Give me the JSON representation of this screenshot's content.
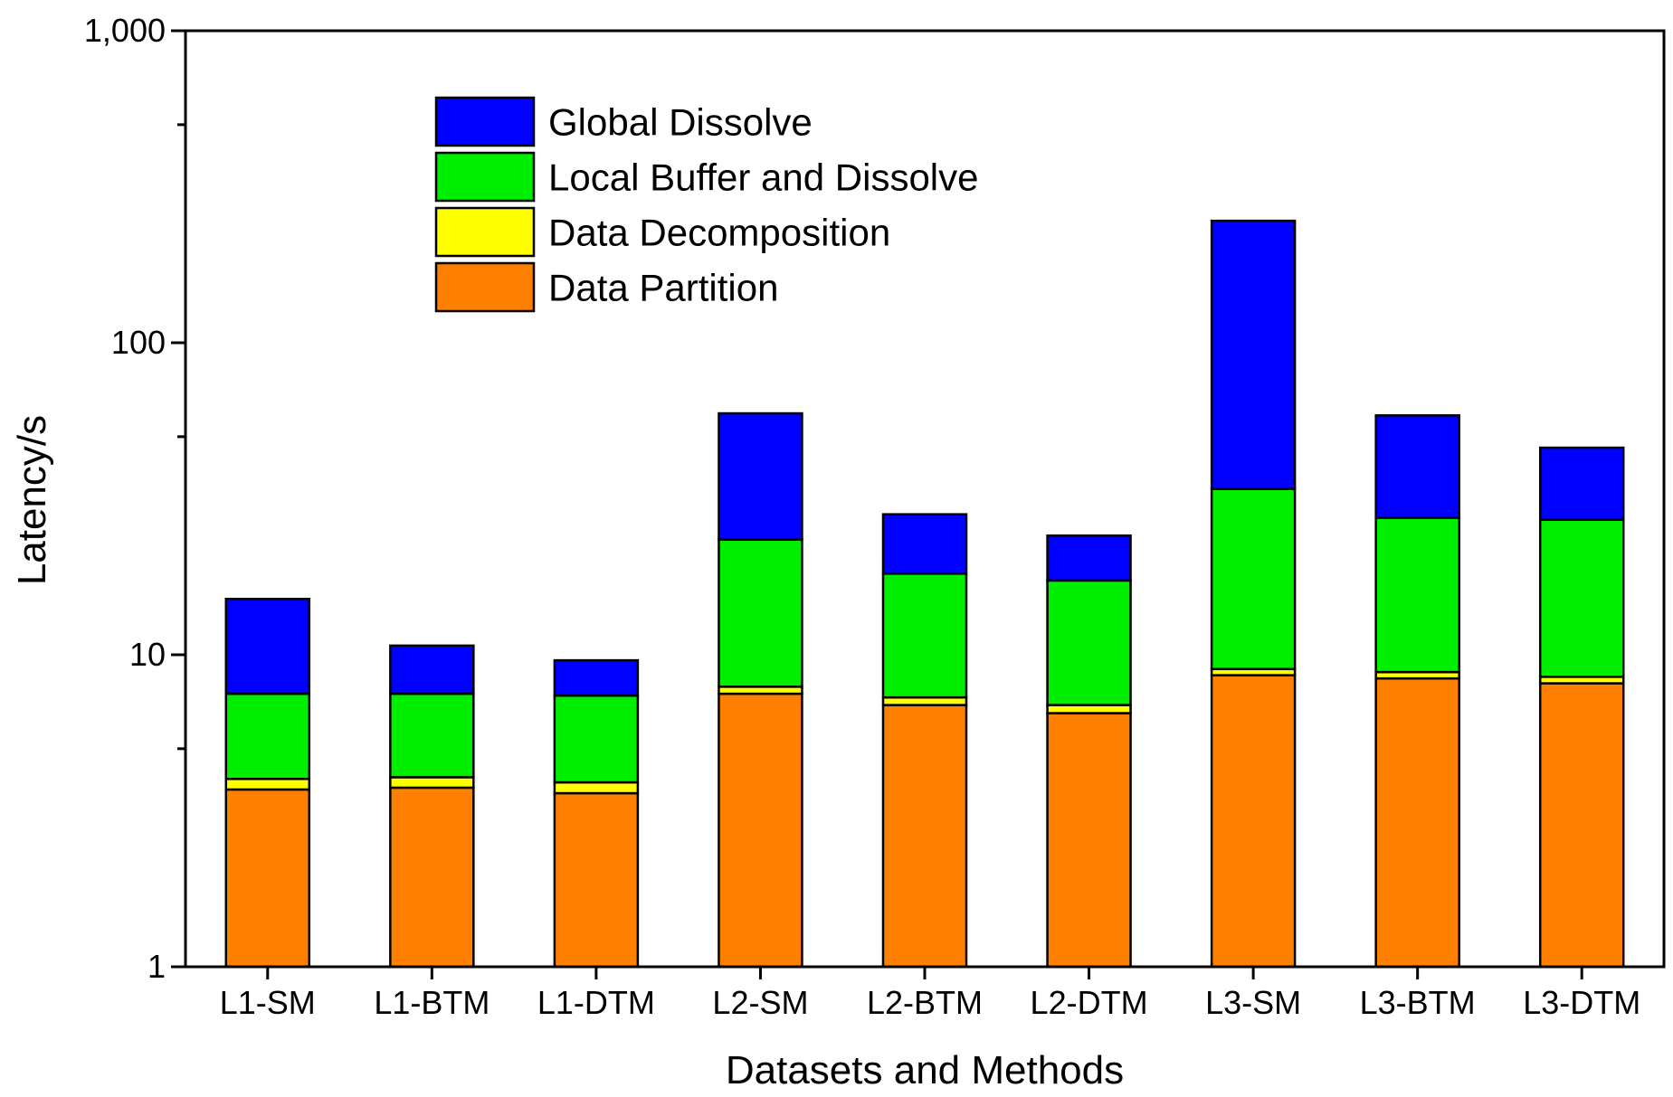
{
  "chart_data": {
    "type": "bar",
    "stacked": true,
    "yscale": "log",
    "xlabel": "Datasets and Methods",
    "ylabel": "Latency/s",
    "ylim": [
      1,
      1000
    ],
    "yticks": [
      {
        "value": 1,
        "label": "1"
      },
      {
        "value": 10,
        "label": "10"
      },
      {
        "value": 100,
        "label": "100"
      },
      {
        "value": 1000,
        "label": "1,000"
      }
    ],
    "categories": [
      "L1-SM",
      "L1-BTM",
      "L1-DTM",
      "L2-SM",
      "L2-BTM",
      "L2-DTM",
      "L3-SM",
      "L3-BTM",
      "L3-DTM"
    ],
    "series": [
      {
        "name": "Data Partition",
        "color": "#ff7f00",
        "values": [
          3.7,
          3.75,
          3.6,
          7.5,
          6.9,
          6.5,
          8.6,
          8.4,
          8.1
        ]
      },
      {
        "name": "Data Decomposition",
        "color": "#ffff00",
        "values": [
          0.3,
          0.3,
          0.3,
          0.4,
          0.4,
          0.4,
          0.4,
          0.4,
          0.4
        ]
      },
      {
        "name": "Local Buffer and Dissolve",
        "color": "#00ee00",
        "values": [
          3.5,
          3.45,
          3.5,
          15.5,
          10.9,
          10.4,
          25.0,
          18.7,
          18.6
        ]
      },
      {
        "name": "Global Dissolve",
        "color": "#0000ff",
        "values": [
          7.6,
          3.2,
          2.2,
          36.0,
          10.0,
          6.8,
          212.0,
          31.0,
          19.0
        ]
      }
    ],
    "legend": {
      "position": "top-left",
      "order": [
        "Global Dissolve",
        "Local Buffer and Dissolve",
        "Data Decomposition",
        "Data Partition"
      ]
    }
  }
}
